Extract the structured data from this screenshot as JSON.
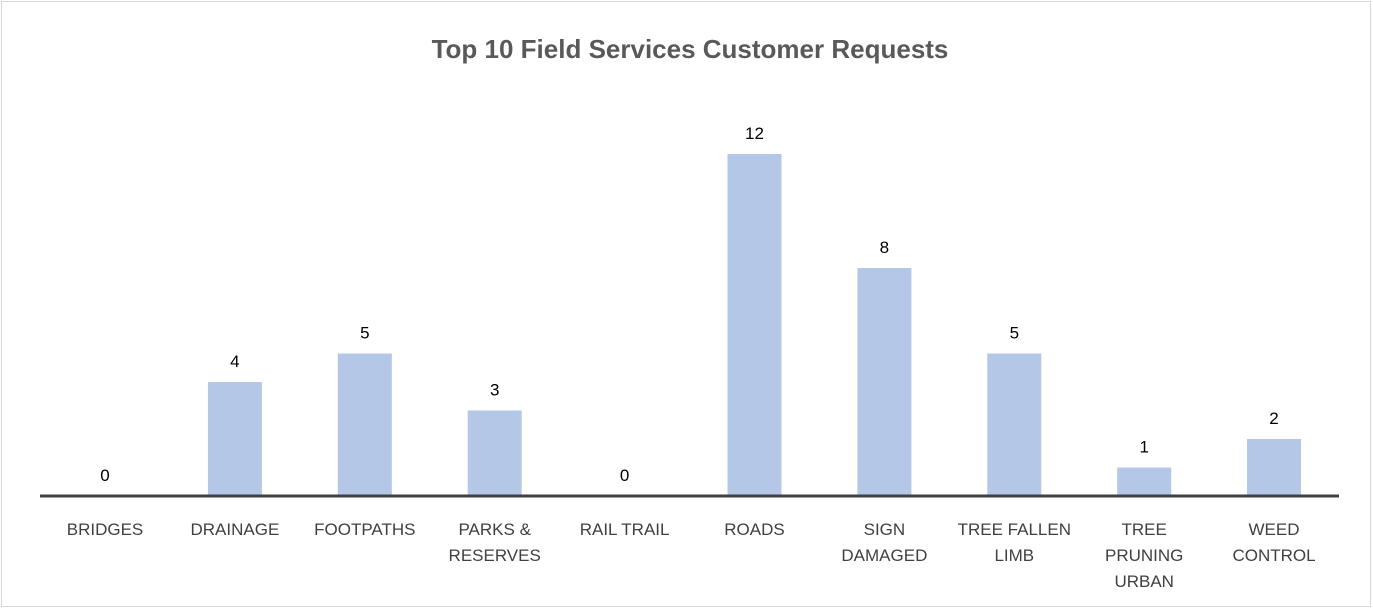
{
  "chart_data": {
    "type": "bar",
    "title": "Top 10 Field Services Customer Requests",
    "categories": [
      "BRIDGES",
      "DRAINAGE",
      "FOOTPATHS",
      "PARKS & RESERVES",
      "RAIL TRAIL",
      "ROADS",
      "SIGN DAMAGED",
      "TREE FALLEN LIMB",
      "TREE PRUNING URBAN",
      "WEED CONTROL"
    ],
    "category_lines": [
      [
        "BRIDGES"
      ],
      [
        "DRAINAGE"
      ],
      [
        "FOOTPATHS"
      ],
      [
        "PARKS &",
        "RESERVES"
      ],
      [
        "RAIL TRAIL"
      ],
      [
        "ROADS"
      ],
      [
        "SIGN",
        "DAMAGED"
      ],
      [
        "TREE FALLEN",
        "LIMB"
      ],
      [
        "TREE",
        "PRUNING",
        "URBAN"
      ],
      [
        "WEED",
        "CONTROL"
      ]
    ],
    "values": [
      0,
      4,
      5,
      3,
      0,
      12,
      8,
      5,
      1,
      2
    ],
    "ylim": [
      0,
      12
    ],
    "grid": false,
    "legend": false,
    "bar_color": "#b4c7e7",
    "axis_color": "#404040"
  }
}
